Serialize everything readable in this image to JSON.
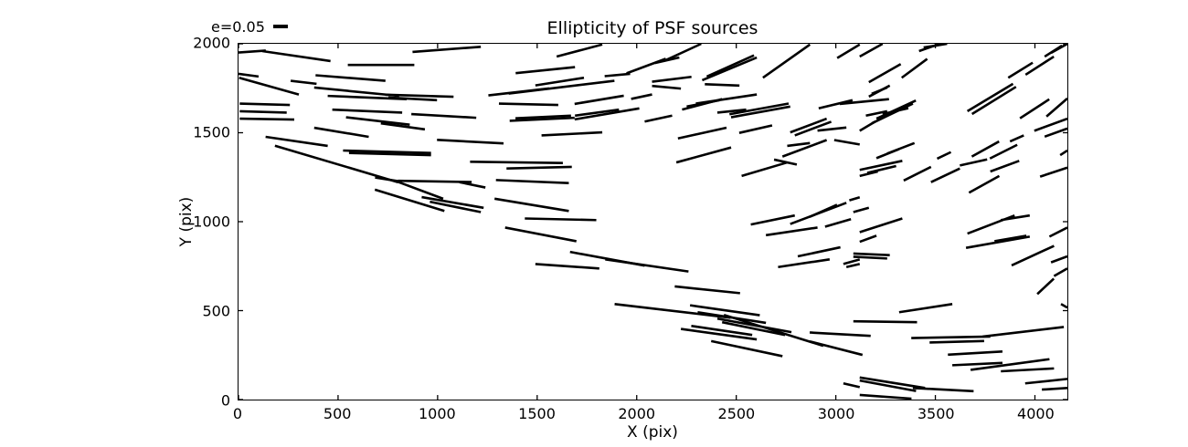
{
  "title": "Ellipticity of PSF sources",
  "legend": {
    "label": "e=0.05"
  },
  "axes": {
    "xlabel": "X (pix)",
    "ylabel": "Y (pix)",
    "xlim": [
      0,
      4163
    ],
    "ylim": [
      0,
      2000
    ],
    "x_ticks": [
      0,
      500,
      1000,
      1500,
      2000,
      2500,
      3000,
      3500,
      4000
    ],
    "y_ticks": [
      0,
      500,
      1000,
      1500,
      2000
    ],
    "frame_color": "#000000",
    "grid": "off",
    "legend_position": "upper-left-outside"
  },
  "chart_data": {
    "type": "line",
    "subtype": "whisker-stick-plot (PSF ellipticity sticks; each segment = one PSF source, orientation = ellipticity position angle, length ~ ellipticity, scale bar e=0.05)",
    "title": "Ellipticity of PSF sources",
    "xlabel": "X (pix)",
    "ylabel": "Y (pix)",
    "xlim": [
      0,
      4163
    ],
    "ylim": [
      0,
      2000
    ],
    "stick_color": "#000000",
    "segments": [
      [
        0,
        1951,
        137,
        1962
      ],
      [
        119,
        1959,
        462,
        1903
      ],
      [
        874,
        1954,
        1217,
        1983
      ],
      [
        549,
        1881,
        883,
        1881
      ],
      [
        0,
        1831,
        101,
        1816
      ],
      [
        387,
        1823,
        738,
        1792
      ],
      [
        262,
        1792,
        392,
        1775
      ],
      [
        3,
        1809,
        303,
        1715
      ],
      [
        380,
        1754,
        807,
        1707
      ],
      [
        448,
        1707,
        845,
        1689
      ],
      [
        737,
        1714,
        1080,
        1702
      ],
      [
        753,
        1698,
        997,
        1683
      ],
      [
        6,
        1664,
        258,
        1656
      ],
      [
        6,
        1621,
        242,
        1613
      ],
      [
        471,
        1630,
        822,
        1613
      ],
      [
        540,
        1587,
        860,
        1545
      ],
      [
        6,
        1579,
        280,
        1574
      ],
      [
        715,
        1553,
        936,
        1519
      ],
      [
        868,
        1605,
        1194,
        1584
      ],
      [
        380,
        1528,
        654,
        1477
      ],
      [
        136,
        1477,
        448,
        1426
      ],
      [
        183,
        1427,
        801,
        1222
      ],
      [
        525,
        1400,
        967,
        1386
      ],
      [
        555,
        1386,
        967,
        1374
      ],
      [
        997,
        1460,
        1331,
        1440
      ],
      [
        1598,
        1928,
        1827,
        1996
      ],
      [
        1392,
        1835,
        1690,
        1869
      ],
      [
        1839,
        1818,
        1967,
        1831
      ],
      [
        1949,
        1834,
        2146,
        1916
      ],
      [
        1491,
        1766,
        1735,
        1809
      ],
      [
        1255,
        1710,
        1560,
        1749
      ],
      [
        1357,
        1720,
        1888,
        1792
      ],
      [
        1308,
        1664,
        1606,
        1656
      ],
      [
        1688,
        1662,
        1935,
        1708
      ],
      [
        1972,
        1690,
        2077,
        1715
      ],
      [
        1362,
        1567,
        1688,
        1584
      ],
      [
        1391,
        1581,
        1670,
        1596
      ],
      [
        1690,
        1596,
        1911,
        1630
      ],
      [
        1688,
        1575,
        2013,
        1637
      ],
      [
        1522,
        1485,
        1827,
        1502
      ],
      [
        2146,
        1908,
        2324,
        2000
      ],
      [
        2091,
        1892,
        2214,
        1923
      ],
      [
        2329,
        1795,
        2603,
        1923
      ],
      [
        2352,
        1816,
        2589,
        1935
      ],
      [
        2634,
        1809,
        2870,
        1996
      ],
      [
        3007,
        1920,
        3120,
        1996
      ],
      [
        2077,
        1787,
        2275,
        1814
      ],
      [
        2077,
        1763,
        2222,
        1748
      ],
      [
        2342,
        1773,
        2516,
        1765
      ],
      [
        2228,
        1630,
        2429,
        1689
      ],
      [
        2297,
        1664,
        2603,
        1715
      ],
      [
        2251,
        1647,
        2416,
        1683
      ],
      [
        2466,
        1604,
        2763,
        1664
      ],
      [
        2474,
        1587,
        2771,
        1647
      ],
      [
        2405,
        1613,
        2550,
        1630
      ],
      [
        2914,
        1637,
        3084,
        1683
      ],
      [
        3020,
        1662,
        3267,
        1689
      ],
      [
        2040,
        1563,
        2178,
        1596
      ],
      [
        2207,
        1468,
        2451,
        1528
      ],
      [
        2515,
        1499,
        2680,
        1541
      ],
      [
        2771,
        1502,
        2954,
        1579
      ],
      [
        2794,
        1485,
        2977,
        1562
      ],
      [
        2908,
        1512,
        3053,
        1529
      ],
      [
        2199,
        1333,
        2474,
        1417
      ],
      [
        2732,
        1366,
        2954,
        1459
      ],
      [
        2756,
        1426,
        2870,
        1442
      ],
      [
        2992,
        1459,
        3120,
        1434
      ],
      [
        3120,
        1928,
        3235,
        2000
      ],
      [
        3166,
        1784,
        3326,
        1886
      ],
      [
        3331,
        1809,
        3459,
        1915
      ],
      [
        3418,
        1959,
        3523,
        2000
      ],
      [
        3441,
        1979,
        3559,
        2000
      ],
      [
        3866,
        1809,
        3989,
        1894
      ],
      [
        3953,
        1826,
        4095,
        1928
      ],
      [
        4049,
        1928,
        4136,
        1990
      ],
      [
        4081,
        1949,
        4163,
        2000
      ],
      [
        3166,
        1703,
        3271,
        1765
      ],
      [
        3180,
        1719,
        3258,
        1754
      ],
      [
        3181,
        1553,
        3387,
        1664
      ],
      [
        3204,
        1579,
        3402,
        1681
      ],
      [
        3235,
        1605,
        3364,
        1638
      ],
      [
        3151,
        1596,
        3258,
        1621
      ],
      [
        3661,
        1621,
        3890,
        1775
      ],
      [
        3684,
        1605,
        3905,
        1758
      ],
      [
        3925,
        1581,
        4072,
        1688
      ],
      [
        4058,
        1591,
        4163,
        1693
      ],
      [
        3997,
        1511,
        4163,
        1579
      ],
      [
        4049,
        1478,
        4163,
        1524
      ],
      [
        3120,
        1511,
        3197,
        1562
      ],
      [
        3204,
        1357,
        3318,
        1408
      ],
      [
        3258,
        1383,
        3395,
        1442
      ],
      [
        3509,
        1354,
        3578,
        1391
      ],
      [
        3683,
        1366,
        3820,
        1451
      ],
      [
        3774,
        1355,
        3911,
        1432
      ],
      [
        3875,
        1451,
        3944,
        1485
      ],
      [
        4127,
        1374,
        4163,
        1400
      ],
      [
        686,
        1248,
        801,
        1228
      ],
      [
        801,
        1230,
        1171,
        1223
      ],
      [
        791,
        1228,
        1028,
        1129
      ],
      [
        685,
        1180,
        1034,
        1060
      ],
      [
        920,
        1138,
        1231,
        1078
      ],
      [
        961,
        1112,
        1217,
        1054
      ],
      [
        1163,
        1337,
        1629,
        1330
      ],
      [
        1346,
        1299,
        1674,
        1308
      ],
      [
        1110,
        1222,
        1240,
        1192
      ],
      [
        1293,
        1234,
        1659,
        1217
      ],
      [
        1286,
        1129,
        1659,
        1060
      ],
      [
        1438,
        1018,
        1797,
        1009
      ],
      [
        1339,
        967,
        1697,
        890
      ],
      [
        1665,
        830,
        2040,
        753
      ],
      [
        1842,
        788,
        2260,
        720
      ],
      [
        1491,
        762,
        1812,
        737
      ],
      [
        2527,
        1257,
        2756,
        1333
      ],
      [
        2690,
        1349,
        2804,
        1321
      ],
      [
        2573,
        984,
        2794,
        1035
      ],
      [
        2771,
        987,
        3053,
        1106
      ],
      [
        2869,
        1027,
        3006,
        1095
      ],
      [
        3068,
        1120,
        3120,
        1137
      ],
      [
        2946,
        972,
        3076,
        1014
      ],
      [
        2649,
        924,
        2908,
        967
      ],
      [
        2809,
        805,
        3023,
        856
      ],
      [
        2710,
        745,
        2969,
        788
      ],
      [
        3038,
        762,
        3120,
        788
      ],
      [
        3053,
        745,
        3120,
        762
      ],
      [
        3120,
        1291,
        3334,
        1342
      ],
      [
        3158,
        1274,
        3303,
        1313
      ],
      [
        3120,
        1257,
        3211,
        1282
      ],
      [
        3341,
        1231,
        3478,
        1308
      ],
      [
        3478,
        1222,
        3623,
        1299
      ],
      [
        3623,
        1316,
        3760,
        1350
      ],
      [
        3669,
        1163,
        3821,
        1257
      ],
      [
        3776,
        1282,
        3921,
        1342
      ],
      [
        4026,
        1253,
        4163,
        1304
      ],
      [
        3088,
        1054,
        3166,
        1078
      ],
      [
        3120,
        941,
        3334,
        1018
      ],
      [
        3120,
        887,
        3204,
        921
      ],
      [
        3661,
        933,
        3898,
        1035
      ],
      [
        3829,
        1009,
        3974,
        1035
      ],
      [
        3654,
        853,
        3974,
        916
      ],
      [
        3797,
        890,
        3957,
        921
      ],
      [
        4073,
        916,
        4163,
        967
      ],
      [
        3088,
        821,
        3271,
        812
      ],
      [
        3088,
        803,
        3258,
        793
      ],
      [
        3883,
        754,
        4096,
        864
      ],
      [
        4081,
        771,
        4163,
        805
      ],
      [
        4096,
        694,
        4163,
        737
      ],
      [
        2191,
        636,
        2519,
        598
      ],
      [
        1889,
        537,
        2471,
        460
      ],
      [
        2438,
        476,
        2937,
        302
      ],
      [
        2869,
        327,
        3134,
        251
      ],
      [
        2268,
        530,
        2618,
        474
      ],
      [
        2306,
        491,
        2649,
        431
      ],
      [
        2405,
        455,
        2777,
        379
      ],
      [
        2429,
        435,
        2745,
        363
      ],
      [
        2222,
        397,
        2603,
        338
      ],
      [
        2274,
        414,
        2580,
        363
      ],
      [
        2374,
        329,
        2732,
        244
      ],
      [
        2869,
        377,
        3175,
        358
      ],
      [
        3038,
        91,
        3120,
        70
      ],
      [
        4012,
        593,
        4095,
        680
      ],
      [
        3318,
        491,
        3585,
        537
      ],
      [
        3088,
        440,
        3408,
        435
      ],
      [
        3379,
        346,
        3776,
        354
      ],
      [
        3471,
        321,
        3745,
        329
      ],
      [
        3738,
        354,
        4145,
        408
      ],
      [
        3563,
        252,
        3837,
        270
      ],
      [
        3585,
        193,
        3837,
        206
      ],
      [
        3677,
        167,
        4073,
        227
      ],
      [
        3829,
        159,
        4096,
        175
      ],
      [
        3120,
        124,
        3448,
        65
      ],
      [
        3120,
        107,
        3403,
        48
      ],
      [
        3120,
        26,
        3380,
        5
      ],
      [
        3387,
        65,
        3692,
        47
      ],
      [
        3951,
        91,
        4163,
        116
      ],
      [
        4035,
        56,
        4163,
        65
      ],
      [
        4131,
        537,
        4163,
        517
      ]
    ]
  }
}
